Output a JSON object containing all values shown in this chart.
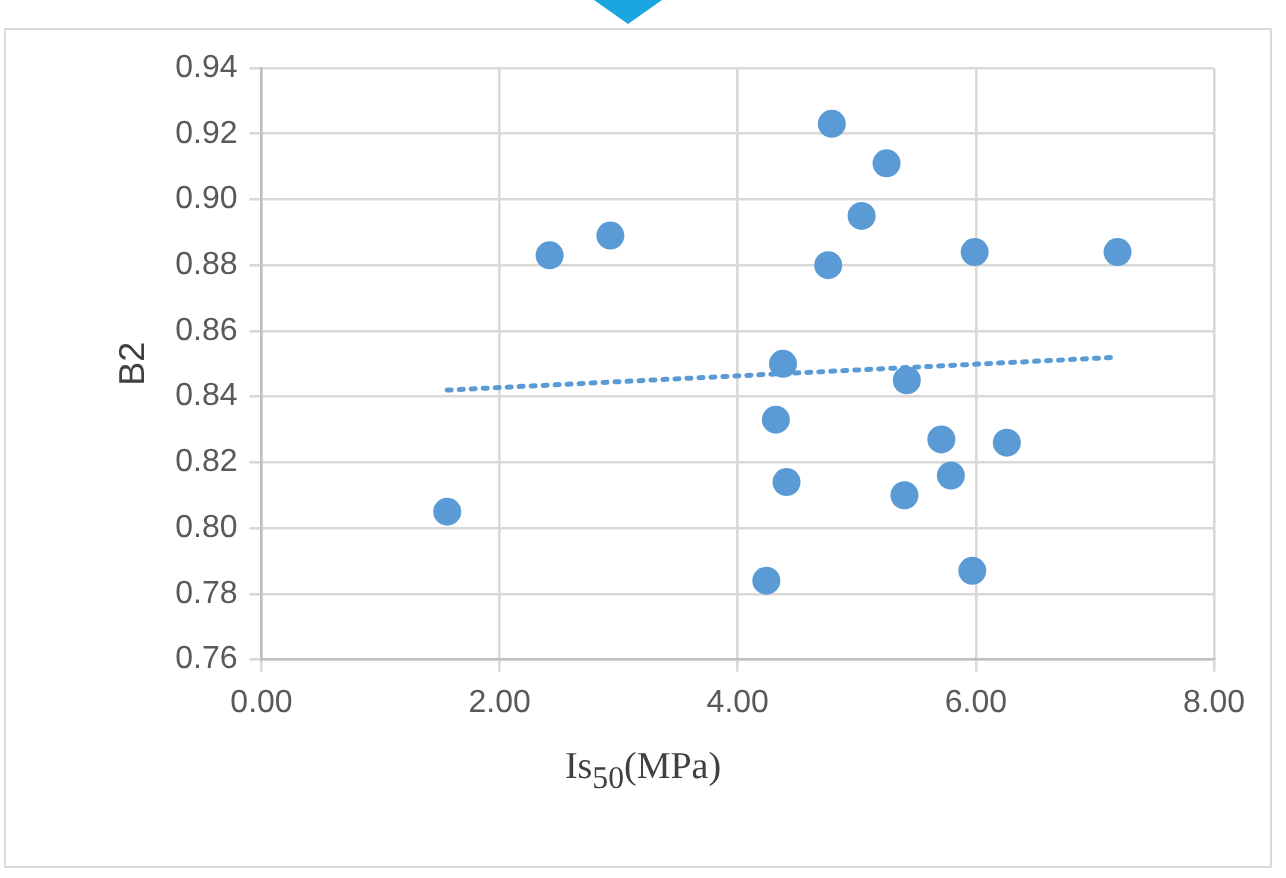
{
  "chart_data": {
    "type": "scatter",
    "xlabel": "Is$_{50}$(MPa)",
    "ylabel": "B2",
    "xlim": [
      0,
      8
    ],
    "ylim": [
      0.76,
      0.94
    ],
    "xticks": [
      {
        "value": 0,
        "label": "0.00"
      },
      {
        "value": 2,
        "label": "2.00"
      },
      {
        "value": 4,
        "label": "4.00"
      },
      {
        "value": 6,
        "label": "6.00"
      },
      {
        "value": 8,
        "label": "8.00"
      }
    ],
    "yticks": [
      {
        "value": 0.76,
        "label": "0.76"
      },
      {
        "value": 0.78,
        "label": "0.78"
      },
      {
        "value": 0.8,
        "label": "0.80"
      },
      {
        "value": 0.82,
        "label": "0.82"
      },
      {
        "value": 0.84,
        "label": "0.84"
      },
      {
        "value": 0.86,
        "label": "0.86"
      },
      {
        "value": 0.88,
        "label": "0.88"
      },
      {
        "value": 0.9,
        "label": "0.90"
      },
      {
        "value": 0.92,
        "label": "0.92"
      },
      {
        "value": 0.94,
        "label": "0.94"
      }
    ],
    "grid": true,
    "legend": false,
    "marker": "circle",
    "series": [
      {
        "color": "#5b9bd5",
        "x": [
          1.56,
          2.42,
          2.93,
          4.79,
          5.25,
          5.04,
          4.76,
          5.99,
          7.19,
          4.38,
          5.42,
          4.32,
          5.71,
          6.26,
          4.41,
          5.79,
          5.4,
          4.24,
          5.97
        ],
        "values": [
          0.805,
          0.883,
          0.889,
          0.923,
          0.911,
          0.895,
          0.88,
          0.884,
          0.884,
          0.85,
          0.845,
          0.833,
          0.827,
          0.826,
          0.814,
          0.816,
          0.81,
          0.784,
          0.787
        ]
      },
      {
        "type": "line",
        "color": "#5b9bd5",
        "line_style": "dotted",
        "marker": "none",
        "x": [
          1.56,
          7.19
        ],
        "values": [
          0.842,
          0.852
        ]
      }
    ]
  }
}
